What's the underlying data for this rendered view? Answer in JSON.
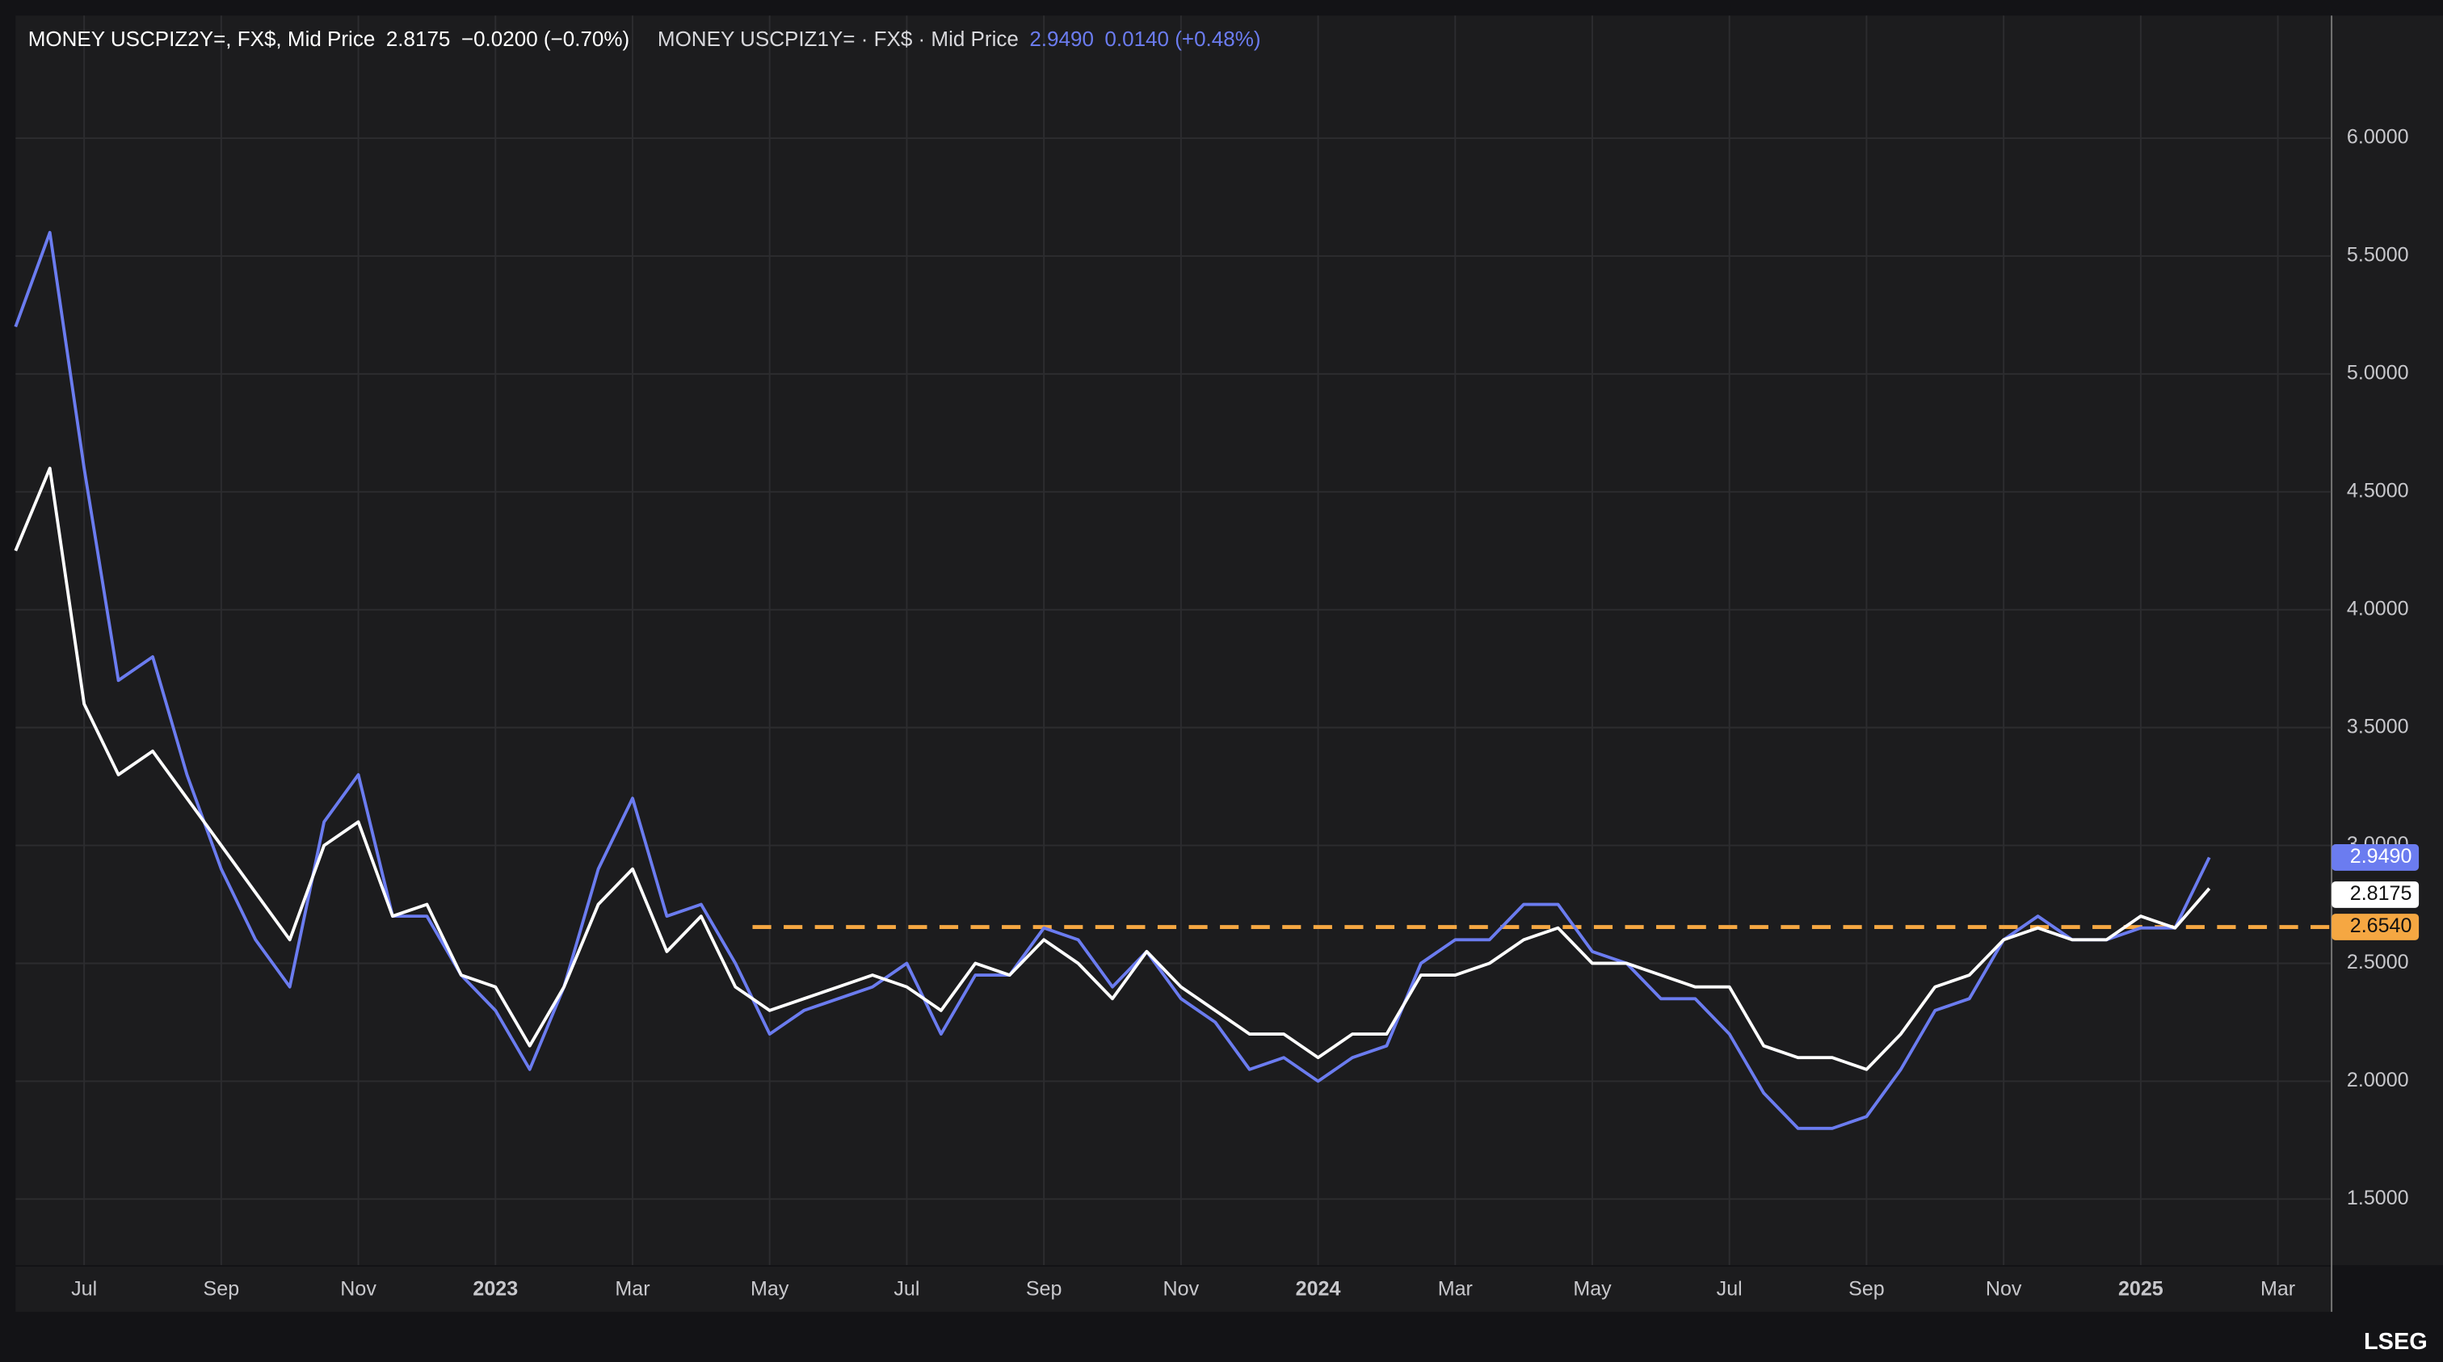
{
  "chart_data": {
    "type": "line",
    "categories": [
      null,
      null,
      "Jul",
      null,
      null,
      null,
      "Sep",
      null,
      null,
      null,
      "Nov",
      null,
      null,
      null,
      "2023",
      null,
      null,
      null,
      "Mar",
      null,
      null,
      null,
      "May",
      null,
      null,
      null,
      "Jul",
      null,
      null,
      null,
      "Sep",
      null,
      null,
      null,
      "Nov",
      null,
      null,
      null,
      "2024",
      null,
      null,
      null,
      "Mar",
      null,
      null,
      null,
      "May",
      null,
      null,
      null,
      "Jul",
      null,
      null,
      null,
      "Sep",
      null,
      null,
      null,
      "Nov",
      null,
      null,
      null,
      "2025",
      null,
      null,
      null,
      "Mar",
      null
    ],
    "series": [
      {
        "name": "MONEY USCPIZ2Y=, FX$, Mid Price",
        "last_label": "2.8175",
        "change_label": "−0.0200 (−0.70%)",
        "color": "#ffffff",
        "values": [
          4.25,
          4.6,
          3.6,
          3.3,
          3.4,
          3.2,
          3.0,
          2.8,
          2.6,
          3.0,
          3.1,
          2.7,
          2.75,
          2.45,
          2.4,
          2.15,
          2.4,
          2.75,
          2.9,
          2.55,
          2.7,
          2.4,
          2.3,
          2.35,
          2.4,
          2.45,
          2.4,
          2.3,
          2.5,
          2.45,
          2.6,
          2.5,
          2.35,
          2.55,
          2.4,
          2.3,
          2.2,
          2.2,
          2.1,
          2.2,
          2.2,
          2.45,
          2.45,
          2.5,
          2.6,
          2.65,
          2.5,
          2.5,
          2.45,
          2.4,
          2.4,
          2.15,
          2.1,
          2.1,
          2.05,
          2.2,
          2.4,
          2.45,
          2.6,
          2.65,
          2.6,
          2.6,
          2.7,
          2.65,
          2.8175,
          null,
          null,
          null
        ]
      },
      {
        "name": "MONEY USCPIZ1Y= · FX$ · Mid Price",
        "last_label": "2.9490",
        "change_label": "0.0140 (+0.48%)",
        "color": "#6b7cf0",
        "values": [
          5.2,
          5.6,
          4.6,
          3.7,
          3.8,
          3.3,
          2.9,
          2.6,
          2.4,
          3.1,
          3.3,
          2.7,
          2.7,
          2.45,
          2.3,
          2.05,
          2.4,
          2.9,
          3.2,
          2.7,
          2.75,
          2.5,
          2.2,
          2.3,
          2.35,
          2.4,
          2.5,
          2.2,
          2.45,
          2.45,
          2.65,
          2.6,
          2.4,
          2.55,
          2.35,
          2.25,
          2.05,
          2.1,
          2.0,
          2.1,
          2.15,
          2.5,
          2.6,
          2.6,
          2.75,
          2.75,
          2.55,
          2.5,
          2.35,
          2.35,
          2.2,
          1.95,
          1.8,
          1.8,
          1.85,
          2.05,
          2.3,
          2.35,
          2.6,
          2.7,
          2.6,
          2.6,
          2.65,
          2.65,
          2.949,
          null,
          null,
          null
        ]
      }
    ],
    "reference_line": {
      "value": 2.654,
      "label": "2.6540",
      "color": "#f5a742"
    },
    "ylim": [
      1.22,
      6.52
    ],
    "yticks": [
      {
        "value": 1.5,
        "label": "1.5000"
      },
      {
        "value": 2,
        "label": "2.0000"
      },
      {
        "value": 2.5,
        "label": "2.5000"
      },
      {
        "value": 3,
        "label": "3.0000"
      },
      {
        "value": 3.5,
        "label": "3.5000"
      },
      {
        "value": 4,
        "label": "4.0000"
      },
      {
        "value": 4.5,
        "label": "4.5000"
      },
      {
        "value": 5,
        "label": "5.0000"
      },
      {
        "value": 5.5,
        "label": "5.5000"
      },
      {
        "value": 6,
        "label": "6.0000"
      }
    ],
    "grid": true,
    "brand": "LSEG"
  }
}
